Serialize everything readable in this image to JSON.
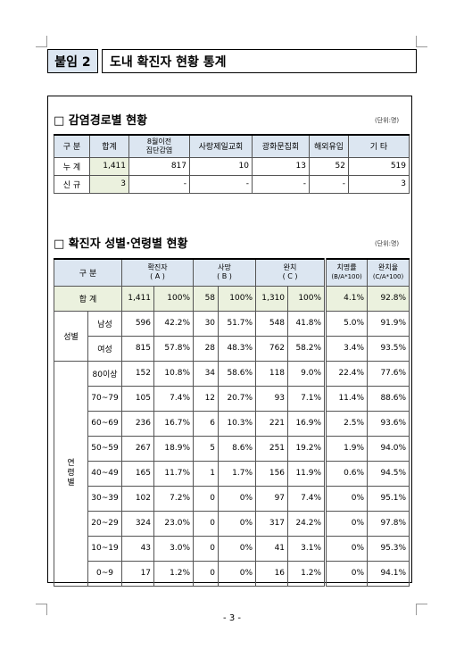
{
  "header": {
    "label": "붙임 2",
    "title": "도내 확진자 현황 통계"
  },
  "section1": {
    "title": "□ 감염경로별 현황",
    "unit": "(단위:명)",
    "headers": [
      "구 분",
      "합계",
      "8월이전",
      "집단감염",
      "사랑제일교회",
      "광화문집회",
      "해외유입",
      "기 타"
    ],
    "rows": [
      {
        "label": "누 계",
        "cells": [
          "1,411",
          "817",
          "10",
          "13",
          "52",
          "519"
        ]
      },
      {
        "label": "신 규",
        "cells": [
          "3",
          "-",
          "-",
          "-",
          "-",
          "3"
        ]
      }
    ]
  },
  "section2": {
    "title": "□ 확진자 성별·연령별 현황",
    "unit": "(단위:명)",
    "headers": {
      "gubun": "구 분",
      "confirmed": "확진자",
      "confirmed_sub": "( A )",
      "death": "사망",
      "death_sub": "( B )",
      "recovered": "완치",
      "recovered_sub": "( C )",
      "fatality": "치명률",
      "fatality_sub": "(B/A*100)",
      "recovery": "완치율",
      "recovery_sub": "(C/A*100)"
    },
    "total": {
      "label": "합 계",
      "cells": [
        "1,411",
        "100%",
        "58",
        "100%",
        "1,310",
        "100%",
        "4.1%",
        "92.8%"
      ]
    },
    "gender_group": "성별",
    "gender": [
      {
        "label": "남성",
        "cells": [
          "596",
          "42.2%",
          "30",
          "51.7%",
          "548",
          "41.8%",
          "5.0%",
          "91.9%"
        ]
      },
      {
        "label": "여성",
        "cells": [
          "815",
          "57.8%",
          "28",
          "48.3%",
          "762",
          "58.2%",
          "3.4%",
          "93.5%"
        ]
      }
    ],
    "age_group": "연령별",
    "age": [
      {
        "label": "80이상",
        "cells": [
          "152",
          "10.8%",
          "34",
          "58.6%",
          "118",
          "9.0%",
          "22.4%",
          "77.6%"
        ]
      },
      {
        "label": "70~79",
        "cells": [
          "105",
          "7.4%",
          "12",
          "20.7%",
          "93",
          "7.1%",
          "11.4%",
          "88.6%"
        ]
      },
      {
        "label": "60~69",
        "cells": [
          "236",
          "16.7%",
          "6",
          "10.3%",
          "221",
          "16.9%",
          "2.5%",
          "93.6%"
        ]
      },
      {
        "label": "50~59",
        "cells": [
          "267",
          "18.9%",
          "5",
          "8.6%",
          "251",
          "19.2%",
          "1.9%",
          "94.0%"
        ]
      },
      {
        "label": "40~49",
        "cells": [
          "165",
          "11.7%",
          "1",
          "1.7%",
          "156",
          "11.9%",
          "0.6%",
          "94.5%"
        ]
      },
      {
        "label": "30~39",
        "cells": [
          "102",
          "7.2%",
          "0",
          "0%",
          "97",
          "7.4%",
          "0%",
          "95.1%"
        ]
      },
      {
        "label": "20~29",
        "cells": [
          "324",
          "23.0%",
          "0",
          "0%",
          "317",
          "24.2%",
          "0%",
          "97.8%"
        ]
      },
      {
        "label": "10~19",
        "cells": [
          "43",
          "3.0%",
          "0",
          "0%",
          "41",
          "3.1%",
          "0%",
          "95.3%"
        ]
      },
      {
        "label": "0~9",
        "cells": [
          "17",
          "1.2%",
          "0",
          "0%",
          "16",
          "1.2%",
          "0%",
          "94.1%"
        ]
      }
    ]
  },
  "page_number": "- 3 -"
}
